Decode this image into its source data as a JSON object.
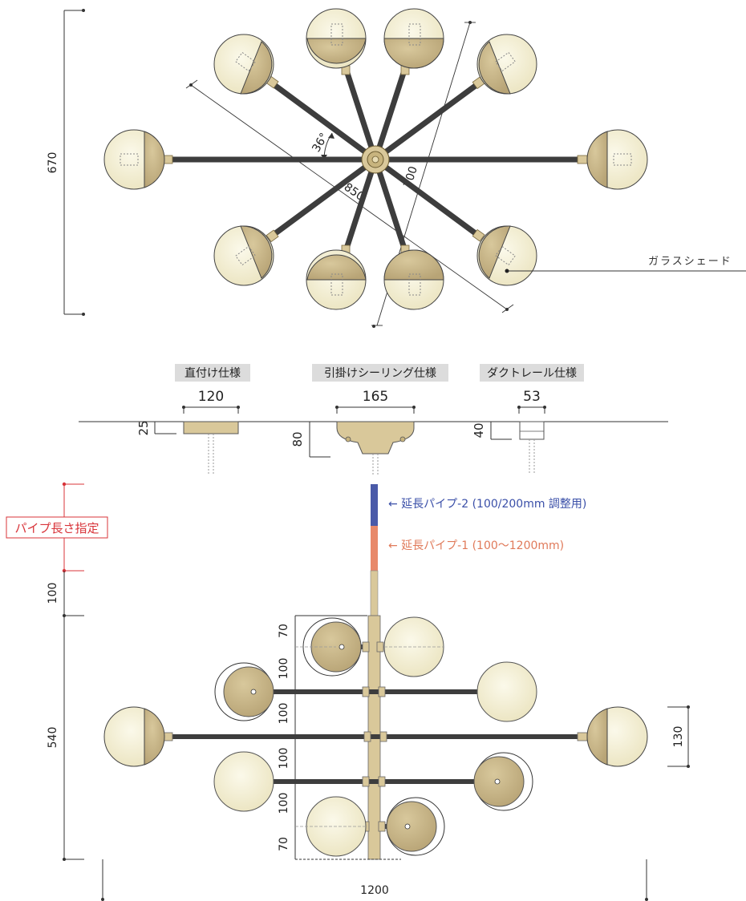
{
  "top_view": {
    "dim_height": "670",
    "dim_angle": "36°",
    "dim_diag_long": "850",
    "dim_diag_short": "700",
    "callout_glass": "ガラスシェード"
  },
  "mounts": {
    "direct": {
      "title": "直付け仕様",
      "width": "120",
      "height": "25"
    },
    "ceiling": {
      "title": "引掛けシーリング仕様",
      "width": "165",
      "height": "80"
    },
    "duct": {
      "title": "ダクトレール仕様",
      "width": "53",
      "height": "40"
    }
  },
  "side_view": {
    "pipe_length_label": "パイプ長さ指定",
    "pipe2_label": "← 延長パイプ-2 (100/200mm 調整用)",
    "pipe1_label": "← 延長パイプ-1 (100～1200mm)",
    "dim_top_pipe": "100",
    "dim_body": "540",
    "dim_width": "1200",
    "dim_shade": "130",
    "tiers": [
      "70",
      "100",
      "100",
      "100",
      "100",
      "70"
    ]
  },
  "colors": {
    "glass_light": "#f5f2dc",
    "glass_tan": "#c9b68a",
    "arm": "#3d3d3d",
    "brass": "#d9c89a",
    "pipe2_blue": "#4a5aa8",
    "pipe1_orange": "#e8896a",
    "red_dim": "#d8343a",
    "blue_text": "#3a4fa8",
    "orange_text": "#e07a5a"
  }
}
